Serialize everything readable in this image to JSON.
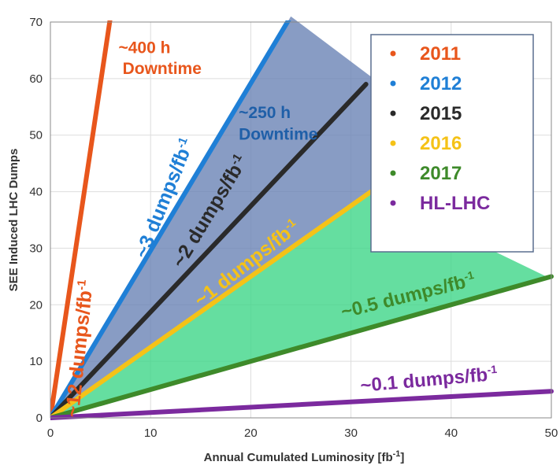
{
  "chart_data": {
    "type": "line",
    "xlabel": "Annual Cumulated Luminosity [fb",
    "xlabel_sup": "-1",
    "xlabel_end": "]",
    "ylabel": "SEE Induced LHC Dumps",
    "xlim": [
      0,
      50
    ],
    "ylim": [
      0,
      70
    ],
    "xticks": [
      0,
      10,
      20,
      30,
      40,
      50
    ],
    "yticks": [
      0,
      10,
      20,
      30,
      40,
      50,
      60,
      70
    ],
    "grid": true,
    "legend_position": "top-right",
    "series": [
      {
        "name": "2011",
        "color": "#e8561c",
        "x": [
          0,
          6
        ],
        "y": [
          0,
          71
        ]
      },
      {
        "name": "2012",
        "color": "#1f7fd6",
        "x": [
          0,
          24
        ],
        "y": [
          0,
          71
        ]
      },
      {
        "name": "2015",
        "color": "#2a2a2a",
        "x": [
          0,
          31.5
        ],
        "y": [
          0,
          59
        ]
      },
      {
        "name": "2016",
        "color": "#f5c217",
        "x": [
          0,
          32
        ],
        "y": [
          0,
          40
        ]
      },
      {
        "name": "2017",
        "color": "#3e8a2a",
        "x": [
          0,
          50
        ],
        "y": [
          0,
          25
        ]
      },
      {
        "name": "HL-LHC",
        "color": "#7b2a9e",
        "x": [
          0,
          50
        ],
        "y": [
          0,
          4.7
        ]
      }
    ],
    "shaded_regions": [
      {
        "color": "#6a83b5",
        "points": [
          [
            0,
            0
          ],
          [
            24,
            71
          ],
          [
            36,
            55
          ],
          [
            32,
            40
          ]
        ]
      },
      {
        "color": "#3fd688",
        "points": [
          [
            0,
            0
          ],
          [
            32,
            40
          ],
          [
            49.5,
            25
          ],
          [
            0,
            0
          ]
        ]
      }
    ],
    "annotations": [
      {
        "id": "a12",
        "prefix": "~12 dumps/fb",
        "sup": "-1",
        "color": "#e8561c",
        "at": [
          2.8,
          0
        ],
        "rot": -84,
        "size": 25
      },
      {
        "id": "a3",
        "prefix": "~3 dumps/fb",
        "sup": "-1",
        "color": "#1f7fd6",
        "at": [
          9.6,
          28
        ],
        "rot": -68,
        "size": 25
      },
      {
        "id": "a2",
        "prefix": "~2 dumps/fb",
        "sup": "-1",
        "color": "#2a2a2a",
        "at": [
          13.2,
          26.3
        ],
        "rot": -59,
        "size": 25
      },
      {
        "id": "a1",
        "prefix": "~1 dumps/fb",
        "sup": "-1",
        "color": "#f5c217",
        "at": [
          15,
          19.5
        ],
        "rot": -38,
        "size": 25
      },
      {
        "id": "a05",
        "prefix": "~0.5 dumps/fb",
        "sup": "-1",
        "color": "#3e8a2a",
        "at": [
          29.2,
          17.6
        ],
        "rot": -14,
        "size": 24
      },
      {
        "id": "a01",
        "prefix": "~0.1 dumps/fb",
        "sup": "-1",
        "color": "#7b2a9e",
        "at": [
          31,
          4.6
        ],
        "rot": -5,
        "size": 24
      }
    ],
    "notes": [
      {
        "id": "n400a",
        "text": "~400 h",
        "color": "#e8561c",
        "at": [
          6.8,
          64.5
        ],
        "size": 21
      },
      {
        "id": "n400b",
        "text": "Downtime",
        "color": "#e8561c",
        "at": [
          7.2,
          60.8
        ],
        "size": 21
      },
      {
        "id": "n250a",
        "text": "~250 h",
        "color": "#1f5fa8",
        "at": [
          18.8,
          53
        ],
        "size": 21
      },
      {
        "id": "n250b",
        "text": "Downtime",
        "color": "#1f5fa8",
        "at": [
          18.8,
          49.2
        ],
        "size": 21
      }
    ]
  }
}
